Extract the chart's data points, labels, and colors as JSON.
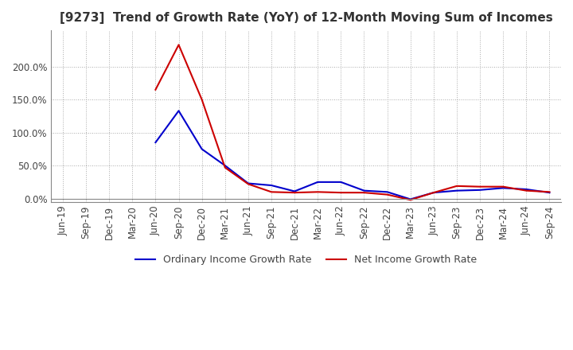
{
  "title": "[9273]  Trend of Growth Rate (YoY) of 12-Month Moving Sum of Incomes",
  "title_fontsize": 11,
  "background_color": "#ffffff",
  "grid_color": "#aaaaaa",
  "ordinary_color": "#0000cc",
  "net_color": "#cc0000",
  "x_labels": [
    "Jun-19",
    "Sep-19",
    "Dec-19",
    "Mar-20",
    "Jun-20",
    "Sep-20",
    "Dec-20",
    "Mar-21",
    "Jun-21",
    "Sep-21",
    "Dec-21",
    "Mar-22",
    "Jun-22",
    "Sep-22",
    "Dec-22",
    "Mar-23",
    "Jun-23",
    "Sep-23",
    "Dec-23",
    "Mar-24",
    "Jun-24",
    "Sep-24"
  ],
  "ordinary_income": [
    null,
    null,
    null,
    null,
    0.85,
    1.33,
    0.75,
    0.5,
    0.23,
    0.2,
    0.11,
    0.25,
    0.25,
    0.12,
    0.1,
    -0.01,
    0.09,
    0.12,
    0.13,
    0.16,
    0.14,
    0.09
  ],
  "net_income": [
    null,
    null,
    null,
    null,
    1.65,
    2.33,
    1.5,
    0.47,
    0.22,
    0.1,
    0.09,
    0.1,
    0.09,
    0.09,
    0.06,
    -0.02,
    0.09,
    0.19,
    0.18,
    0.18,
    0.12,
    0.1
  ],
  "legend_labels": [
    "Ordinary Income Growth Rate",
    "Net Income Growth Rate"
  ],
  "yticks": [
    0.0,
    0.5,
    1.0,
    1.5,
    2.0
  ],
  "ylim_min": -0.05,
  "ylim_max": 2.55
}
